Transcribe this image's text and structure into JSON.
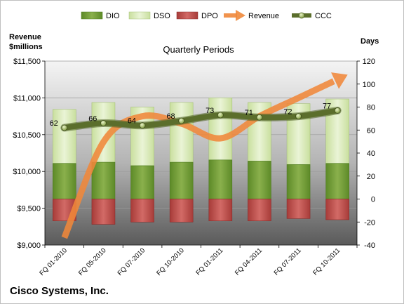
{
  "chart_data": {
    "type": "bar",
    "title": "Quarterly Periods",
    "company": "Cisco Systems, Inc.",
    "categories": [
      "FQ 01-2010",
      "FQ 05-2010",
      "FQ 07-2010",
      "FQ 10-2010",
      "FQ 01-2011",
      "FQ 04-2011",
      "FQ 07-2011",
      "FQ 10-2011"
    ],
    "left_axis": {
      "label_line1": "Revenue",
      "label_line2": "$millions",
      "range": [
        9000,
        11500
      ],
      "ticks": [
        "$9,000",
        "$9,500",
        "$10,000",
        "$10,500",
        "$11,000",
        "$11,500"
      ],
      "tick_values": [
        9000,
        9500,
        10000,
        10500,
        11000,
        11500
      ]
    },
    "right_axis": {
      "label": "Days",
      "range": [
        -40,
        120
      ],
      "ticks": [
        "-40",
        "-20",
        "0",
        "20",
        "40",
        "60",
        "80",
        "100",
        "120"
      ],
      "tick_values": [
        -40,
        -20,
        0,
        20,
        40,
        60,
        80,
        100,
        120
      ]
    },
    "series": [
      {
        "name": "DIO",
        "type": "stacked-bar",
        "axis": "right",
        "color": "#6e9a33",
        "values": [
          31,
          32,
          29,
          32,
          34,
          33,
          30,
          31
        ]
      },
      {
        "name": "DSO",
        "type": "stacked-bar",
        "axis": "right",
        "color": "#d6e8b4",
        "values": [
          47,
          52,
          51,
          52,
          54,
          51,
          53,
          56
        ]
      },
      {
        "name": "DPO",
        "type": "stacked-bar",
        "axis": "right",
        "color": "#c0504d",
        "values": [
          -19,
          -22,
          -20,
          -20,
          -19,
          -19,
          -17,
          -18
        ]
      },
      {
        "name": "Revenue",
        "type": "line",
        "axis": "left",
        "color": "#f0883a",
        "values": [
          9100,
          10400,
          10750,
          10650,
          10450,
          10750,
          11000,
          11250
        ]
      },
      {
        "name": "CCC",
        "type": "line",
        "axis": "right",
        "color": "#5b6e2c",
        "values": [
          62,
          66,
          64,
          68,
          73,
          71,
          72,
          77
        ],
        "labels": [
          "62",
          "66",
          "64",
          "68",
          "73",
          "71",
          "72",
          "77"
        ]
      }
    ],
    "legend": [
      "DIO",
      "DSO",
      "DPO",
      "Revenue",
      "CCC"
    ],
    "legend_position": "top"
  }
}
